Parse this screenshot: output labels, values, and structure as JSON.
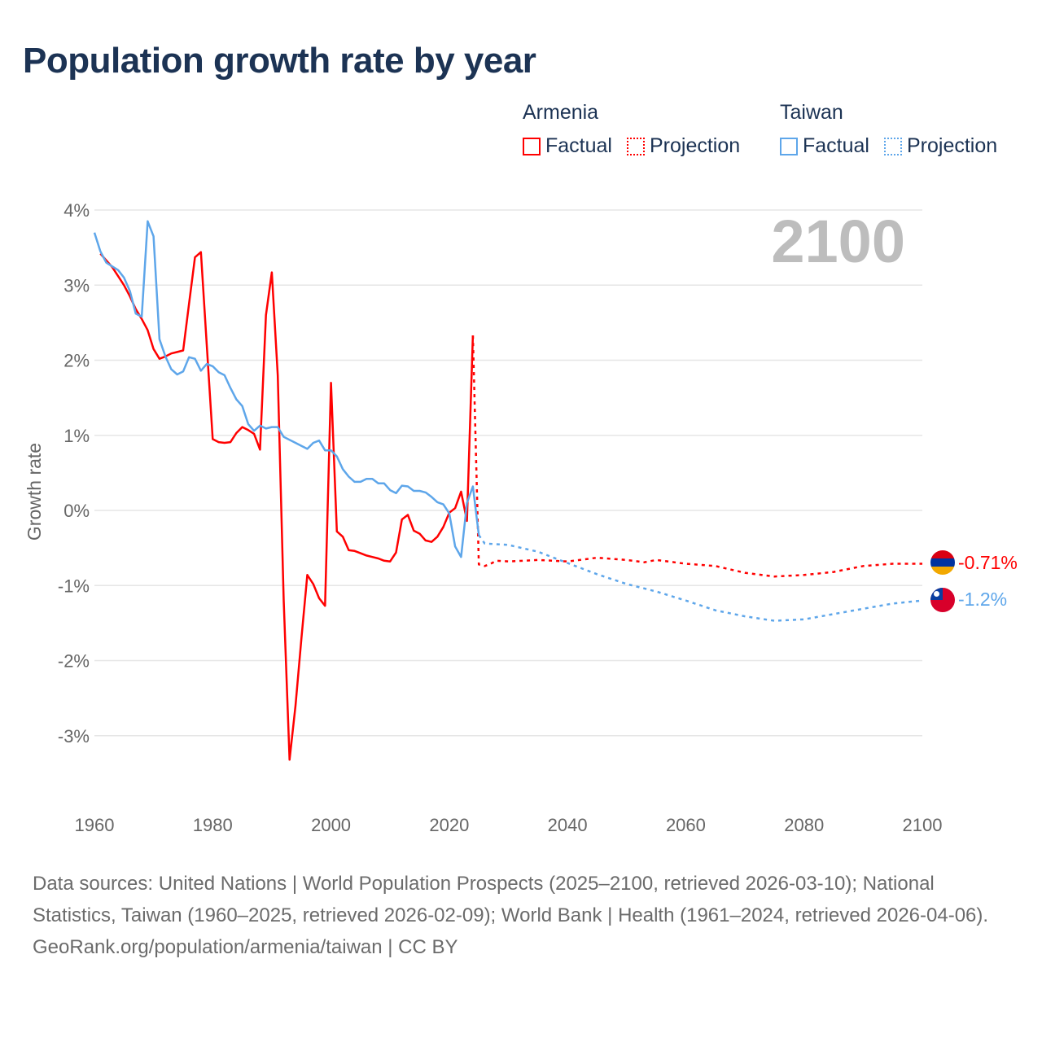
{
  "title": "Population growth rate by year",
  "legend": [
    {
      "name": "Armenia",
      "color": "#ff0000",
      "factual_label": "Factual",
      "projection_label": "Projection"
    },
    {
      "name": "Taiwan",
      "color": "#5ea6ea",
      "factual_label": "Factual",
      "projection_label": "Projection"
    }
  ],
  "year_watermark": "2100",
  "end_labels": {
    "armenia": "-0.71%",
    "taiwan": "-1.2%"
  },
  "footer": {
    "sources": "Data sources: United Nations | World Population Prospects (2025–2100, retrieved 2026-03-10); National Statistics, Taiwan (1960–2025, retrieved 2026-02-09); World Bank | Health (1961–2024, retrieved 2026-04-06).",
    "credit": "GeoRank.org/population/armenia/taiwan | CC BY"
  },
  "chart_data": {
    "type": "line",
    "title": "Population growth rate by year",
    "xlabel": "",
    "ylabel": "Growth rate",
    "xlim": [
      1960,
      2100
    ],
    "ylim": [
      -4,
      4
    ],
    "x_ticks": [
      "1960",
      "1980",
      "2000",
      "2020",
      "2040",
      "2060",
      "2080",
      "2100"
    ],
    "x_tick_values": [
      1960,
      1980,
      2000,
      2020,
      2040,
      2060,
      2080,
      2100
    ],
    "y_ticks": [
      "4%",
      "3%",
      "2%",
      "1%",
      "0%",
      "-1%",
      "-2%",
      "-3%"
    ],
    "y_tick_values": [
      4,
      3,
      2,
      1,
      0,
      -1,
      -2,
      -3
    ],
    "grid": true,
    "legend_position": "top-right",
    "series": [
      {
        "name": "Armenia Factual",
        "color": "#ff0000",
        "dash": false,
        "x": [
          1961,
          1962,
          1963,
          1964,
          1965,
          1966,
          1967,
          1968,
          1969,
          1970,
          1971,
          1972,
          1973,
          1974,
          1975,
          1976,
          1977,
          1978,
          1979,
          1980,
          1981,
          1982,
          1983,
          1984,
          1985,
          1986,
          1987,
          1988,
          1989,
          1990,
          1991,
          1992,
          1993,
          1994,
          1995,
          1996,
          1997,
          1998,
          1999,
          2000,
          2001,
          2002,
          2003,
          2004,
          2005,
          2006,
          2007,
          2008,
          2009,
          2010,
          2011,
          2012,
          2013,
          2014,
          2015,
          2016,
          2017,
          2018,
          2019,
          2020,
          2021,
          2022,
          2023,
          2024
        ],
        "y": [
          3.42,
          3.33,
          3.24,
          3.12,
          3.0,
          2.85,
          2.68,
          2.55,
          2.4,
          2.15,
          2.02,
          2.05,
          2.09,
          2.11,
          2.13,
          2.75,
          3.37,
          3.44,
          2.2,
          0.95,
          0.91,
          0.9,
          0.91,
          1.03,
          1.11,
          1.07,
          1.02,
          0.81,
          2.6,
          3.17,
          1.8,
          -1.2,
          -3.32,
          -2.6,
          -1.7,
          -0.86,
          -0.98,
          -1.17,
          -1.27,
          1.7,
          -0.28,
          -0.35,
          -0.53,
          -0.54,
          -0.57,
          -0.6,
          -0.62,
          -0.64,
          -0.67,
          -0.68,
          -0.56,
          -0.12,
          -0.06,
          -0.27,
          -0.31,
          -0.4,
          -0.42,
          -0.35,
          -0.22,
          -0.03,
          0.03,
          0.25,
          -0.14,
          2.33
        ]
      },
      {
        "name": "Armenia Projection",
        "color": "#ff0000",
        "dash": true,
        "x": [
          2024,
          2025,
          2026,
          2027,
          2028,
          2030,
          2035,
          2040,
          2045,
          2050,
          2053,
          2055,
          2060,
          2065,
          2070,
          2075,
          2080,
          2085,
          2090,
          2095,
          2100
        ],
        "y": [
          2.33,
          -0.72,
          -0.74,
          -0.71,
          -0.67,
          -0.68,
          -0.66,
          -0.68,
          -0.63,
          -0.66,
          -0.69,
          -0.66,
          -0.71,
          -0.74,
          -0.83,
          -0.88,
          -0.86,
          -0.82,
          -0.74,
          -0.71,
          -0.71
        ]
      },
      {
        "name": "Taiwan Factual",
        "color": "#5ea6ea",
        "dash": false,
        "x": [
          1960,
          1961,
          1962,
          1963,
          1964,
          1965,
          1966,
          1967,
          1968,
          1969,
          1970,
          1971,
          1972,
          1973,
          1974,
          1975,
          1976,
          1977,
          1978,
          1979,
          1980,
          1981,
          1982,
          1983,
          1984,
          1985,
          1986,
          1987,
          1988,
          1989,
          1990,
          1991,
          1992,
          1993,
          1994,
          1995,
          1996,
          1997,
          1998,
          1999,
          2000,
          2001,
          2002,
          2003,
          2004,
          2005,
          2006,
          2007,
          2008,
          2009,
          2010,
          2011,
          2012,
          2013,
          2014,
          2015,
          2016,
          2017,
          2018,
          2019,
          2020,
          2021,
          2022,
          2023,
          2024,
          2025
        ],
        "y": [
          3.7,
          3.45,
          3.3,
          3.25,
          3.2,
          3.1,
          2.92,
          2.62,
          2.58,
          3.85,
          3.65,
          2.28,
          2.05,
          1.88,
          1.81,
          1.85,
          2.04,
          2.02,
          1.86,
          1.95,
          1.92,
          1.84,
          1.8,
          1.63,
          1.48,
          1.39,
          1.15,
          1.06,
          1.13,
          1.09,
          1.11,
          1.11,
          0.98,
          0.94,
          0.9,
          0.86,
          0.82,
          0.9,
          0.93,
          0.8,
          0.8,
          0.72,
          0.55,
          0.45,
          0.38,
          0.38,
          0.42,
          0.42,
          0.36,
          0.36,
          0.27,
          0.23,
          0.33,
          0.32,
          0.26,
          0.26,
          0.24,
          0.18,
          0.11,
          0.08,
          -0.04,
          -0.48,
          -0.62,
          0.1,
          0.32,
          -0.33
        ]
      },
      {
        "name": "Taiwan Projection",
        "color": "#5ea6ea",
        "dash": true,
        "x": [
          2025,
          2026,
          2030,
          2035,
          2040,
          2045,
          2050,
          2055,
          2060,
          2065,
          2070,
          2075,
          2080,
          2085,
          2090,
          2095,
          2100
        ],
        "y": [
          -0.33,
          -0.44,
          -0.46,
          -0.55,
          -0.7,
          -0.85,
          -0.98,
          -1.08,
          -1.2,
          -1.33,
          -1.41,
          -1.47,
          -1.45,
          -1.38,
          -1.31,
          -1.24,
          -1.2
        ]
      }
    ]
  }
}
